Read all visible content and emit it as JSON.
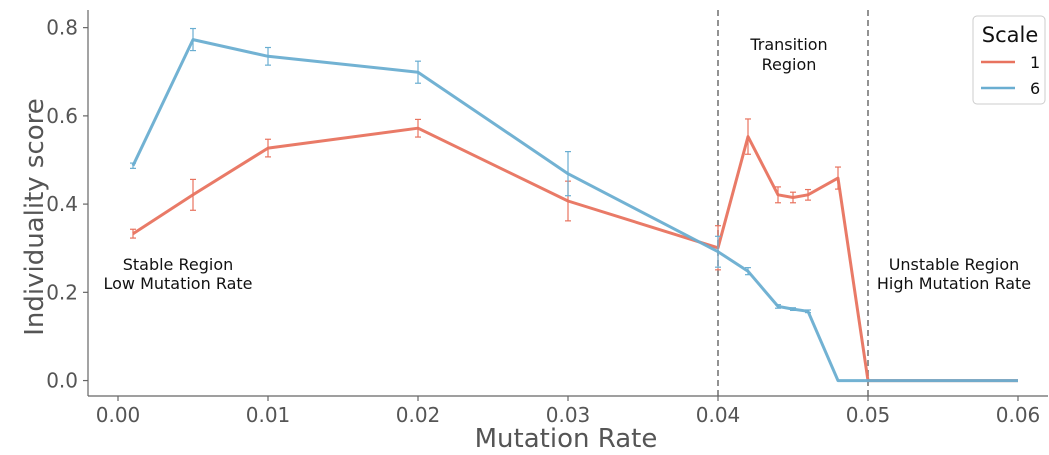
{
  "chart_data": {
    "type": "line",
    "xlabel": "Mutation Rate",
    "ylabel": "Individuality score",
    "xlim": [
      -0.002,
      0.062
    ],
    "ylim": [
      -0.035,
      0.84
    ],
    "xticks": [
      0.0,
      0.01,
      0.02,
      0.03,
      0.04,
      0.05,
      0.06
    ],
    "xtick_labels": [
      "0.00",
      "0.01",
      "0.02",
      "0.03",
      "0.04",
      "0.05",
      "0.06"
    ],
    "yticks": [
      0.0,
      0.2,
      0.4,
      0.6,
      0.8
    ],
    "ytick_labels": [
      "0.0",
      "0.2",
      "0.4",
      "0.6",
      "0.8"
    ],
    "grid": false,
    "legend": {
      "title": "Scale",
      "position": "top-right"
    },
    "vlines": [
      0.04,
      0.05
    ],
    "series": [
      {
        "name": "1",
        "color": "#e8735f",
        "x": [
          0.001,
          0.005,
          0.01,
          0.02,
          0.03,
          0.04,
          0.042,
          0.044,
          0.045,
          0.046,
          0.048,
          0.05,
          0.06
        ],
        "y": [
          0.333,
          0.421,
          0.527,
          0.572,
          0.407,
          0.301,
          0.553,
          0.421,
          0.415,
          0.421,
          0.459,
          0.0,
          0.0
        ],
        "err": [
          0.01,
          0.035,
          0.02,
          0.02,
          0.045,
          0.05,
          0.04,
          0.018,
          0.012,
          0.012,
          0.025,
          0.0,
          0.0
        ]
      },
      {
        "name": "6",
        "color": "#6aaed1",
        "x": [
          0.001,
          0.005,
          0.01,
          0.02,
          0.03,
          0.04,
          0.042,
          0.044,
          0.045,
          0.046,
          0.048,
          0.05,
          0.06
        ],
        "y": [
          0.487,
          0.773,
          0.735,
          0.699,
          0.469,
          0.292,
          0.248,
          0.168,
          0.162,
          0.157,
          0.0,
          0.0,
          0.0
        ],
        "err": [
          0.006,
          0.025,
          0.02,
          0.025,
          0.05,
          0.035,
          0.008,
          0.004,
          0.003,
          0.003,
          0.0,
          0.0,
          0.0
        ]
      }
    ],
    "annotations": [
      {
        "lines": [
          "Stable Region",
          "Low Mutation Rate"
        ]
      },
      {
        "lines": [
          "Transition",
          "Region"
        ]
      },
      {
        "lines": [
          "Unstable Region",
          "High Mutation Rate"
        ]
      }
    ]
  }
}
